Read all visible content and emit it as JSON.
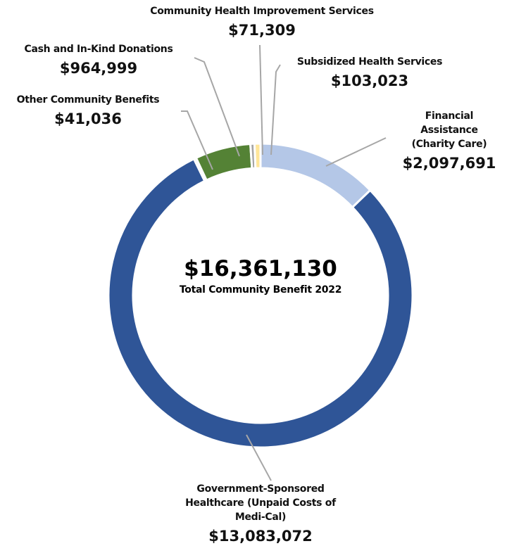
{
  "chart_data": {
    "type": "pie",
    "categories": [
      "Financial Assistance (Charity Care)",
      "Government-Sponsored Healthcare (Unpaid Costs of Medi-Cal)",
      "Other Community Benefits",
      "Cash and In-Kind Donations",
      "Community Health Improvement Services",
      "Subsidized Health Services"
    ],
    "values": [
      2097691,
      13083072,
      41036,
      964999,
      71309,
      103023
    ],
    "value_labels": [
      "$2,097,691",
      "$13,083,072",
      "$41,036",
      "$964,999",
      "$71,309",
      "$103,023"
    ],
    "colors": [
      "#b4c7e7",
      "#2f5597",
      "#d9d9d9",
      "#548235",
      "#a5a5a5",
      "#ffe699"
    ],
    "total": {
      "value": 16361130,
      "label": "$16,361,130"
    },
    "center_text": "Total Community Benefit 2022"
  }
}
